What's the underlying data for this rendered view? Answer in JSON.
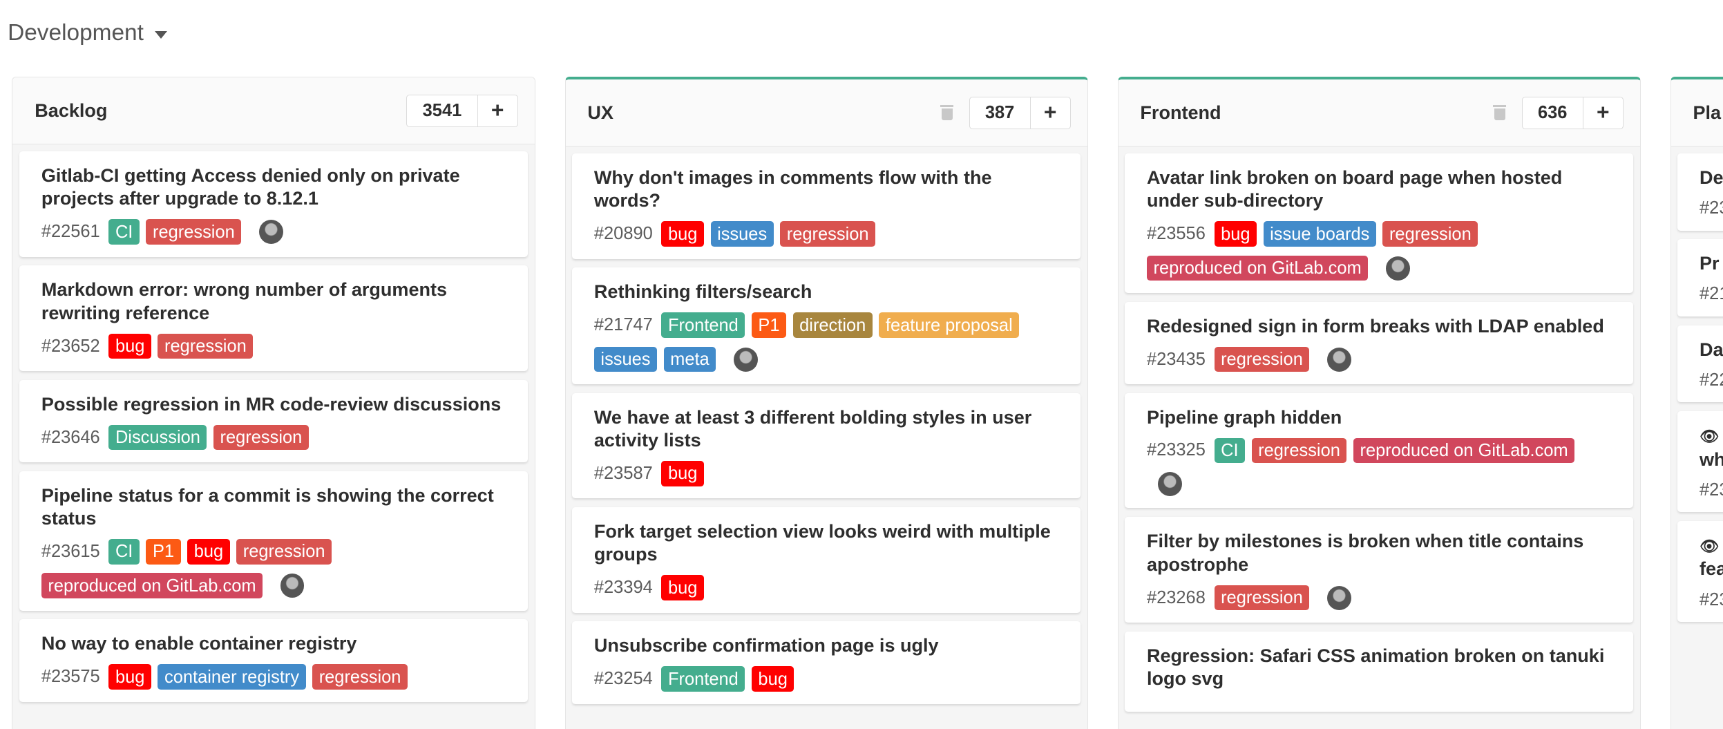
{
  "board": {
    "title": "Development"
  },
  "colors": {
    "accent": "#44ad8e",
    "CI": "#44ad8e",
    "regression": "#d9534f",
    "bug": "#ff0000",
    "issues": "#428bca",
    "issue boards": "#428bca",
    "reproduced on GitLab.com": "#d1475d",
    "Frontend": "#44ad8e",
    "P1": "#fc5a14",
    "direction": "#a8863e",
    "feature proposal": "#f0ad4e",
    "meta": "#428bca",
    "Discussion": "#44ad8e",
    "container registry": "#428bca"
  },
  "lists": [
    {
      "title": "Backlog",
      "count": "3541",
      "accent": false,
      "deletable": false,
      "cards": [
        {
          "title": "Gitlab-CI getting Access denied only on private projects after upgrade to 8.12.1",
          "id": "#22561",
          "labels": [
            "CI",
            "regression"
          ],
          "avatar": true
        },
        {
          "title": "Markdown error: wrong number of arguments rewriting reference",
          "id": "#23652",
          "labels": [
            "bug",
            "regression"
          ],
          "avatar": false
        },
        {
          "title": "Possible regression in MR code-review discussions",
          "id": "#23646",
          "labels": [
            "Discussion",
            "regression"
          ],
          "avatar": false
        },
        {
          "title": "Pipeline status for a commit is showing the correct status",
          "id": "#23615",
          "labels": [
            "CI",
            "P1",
            "bug",
            "regression",
            "reproduced on GitLab.com"
          ],
          "avatar": true
        },
        {
          "title": "No way to enable container registry",
          "id": "#23575",
          "labels": [
            "bug",
            "container registry",
            "regression"
          ],
          "avatar": false
        }
      ]
    },
    {
      "title": "UX",
      "count": "387",
      "accent": true,
      "deletable": true,
      "cards": [
        {
          "title": "Why don't images in comments flow with the words?",
          "id": "#20890",
          "labels": [
            "bug",
            "issues",
            "regression"
          ],
          "avatar": false
        },
        {
          "title": "Rethinking filters/search",
          "id": "#21747",
          "labels": [
            "Frontend",
            "P1",
            "direction",
            "feature proposal",
            "issues",
            "meta"
          ],
          "avatar": true
        },
        {
          "title": "We have at least 3 different bolding styles in user activity lists",
          "id": "#23587",
          "labels": [
            "bug"
          ],
          "avatar": false
        },
        {
          "title": "Fork target selection view looks weird with multiple groups",
          "id": "#23394",
          "labels": [
            "bug"
          ],
          "avatar": false
        },
        {
          "title": "Unsubscribe confirmation page is ugly",
          "id": "#23254",
          "labels": [
            "Frontend",
            "bug"
          ],
          "avatar": false
        }
      ]
    },
    {
      "title": "Frontend",
      "count": "636",
      "accent": true,
      "deletable": true,
      "cards": [
        {
          "title": "Avatar link broken on board page when hosted under sub-directory",
          "id": "#23556",
          "labels": [
            "bug",
            "issue boards",
            "regression",
            "reproduced on GitLab.com"
          ],
          "avatar": true
        },
        {
          "title": "Redesigned sign in form breaks with LDAP enabled",
          "id": "#23435",
          "labels": [
            "regression"
          ],
          "avatar": true
        },
        {
          "title": "Pipeline graph hidden",
          "id": "#23325",
          "labels": [
            "CI",
            "regression",
            "reproduced on GitLab.com"
          ],
          "avatar": true
        },
        {
          "title": "Filter by milestones is broken when title contains apostrophe",
          "id": "#23268",
          "labels": [
            "regression"
          ],
          "avatar": true
        },
        {
          "title": "Regression: Safari CSS animation broken on tanuki logo svg",
          "id": "",
          "labels": [],
          "avatar": false
        }
      ]
    },
    {
      "title": "Pla",
      "count": "",
      "accent": true,
      "deletable": false,
      "cards": [
        {
          "title": "De ne",
          "id": "#23",
          "labels": [],
          "avatar": false
        },
        {
          "title": "Pr",
          "id": "#21",
          "labels": [],
          "avatar": false
        },
        {
          "title": "Da",
          "id": "#22",
          "labels": [],
          "avatar": false
        },
        {
          "title": "wh",
          "id": "#23",
          "labels": [],
          "avatar": false,
          "confidential": true
        },
        {
          "title": "fea",
          "id": "#23",
          "labels": [],
          "avatar": false,
          "confidential": true
        }
      ]
    }
  ]
}
